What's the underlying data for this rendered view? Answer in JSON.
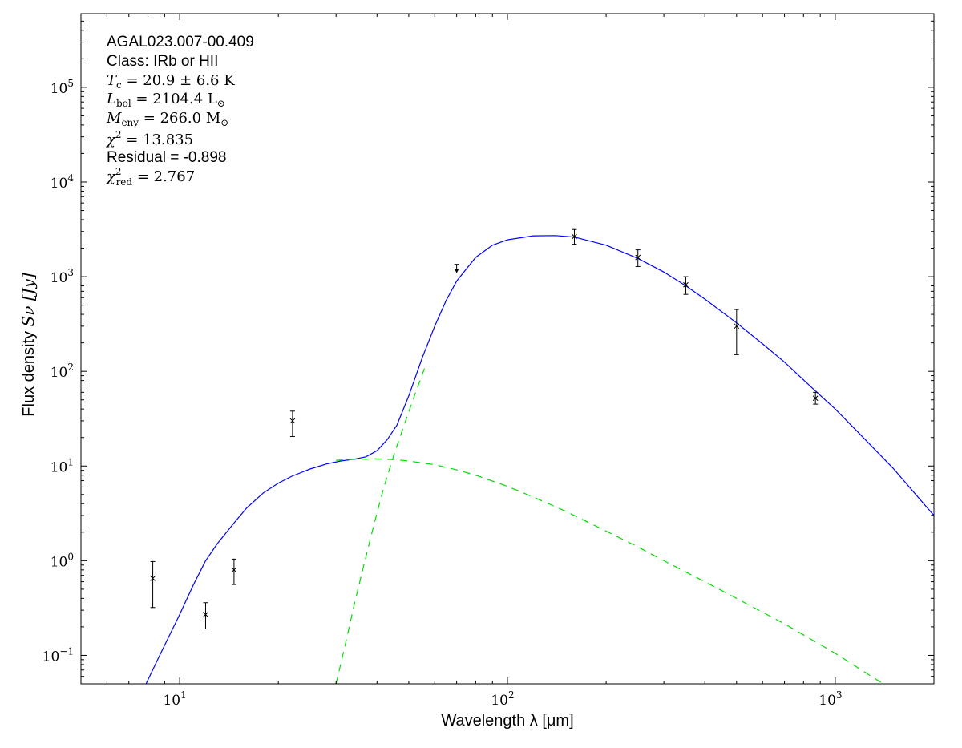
{
  "chart_data": {
    "type": "scatter",
    "xscale": "log",
    "yscale": "log",
    "xlim": [
      5,
      2000
    ],
    "ylim": [
      0.05,
      600000
    ],
    "x_ticks": [
      {
        "value": 10,
        "base": "10",
        "exp": "1"
      },
      {
        "value": 100,
        "base": "10",
        "exp": "2"
      },
      {
        "value": 1000,
        "base": "10",
        "exp": "3"
      }
    ],
    "y_ticks": [
      {
        "value": 0.1,
        "base": "10",
        "exp": "−1"
      },
      {
        "value": 1,
        "base": "10",
        "exp": "0"
      },
      {
        "value": 10,
        "base": "10",
        "exp": "1"
      },
      {
        "value": 100,
        "base": "10",
        "exp": "2"
      },
      {
        "value": 1000,
        "base": "10",
        "exp": "3"
      },
      {
        "value": 10000,
        "base": "10",
        "exp": "4"
      },
      {
        "value": 100000,
        "base": "10",
        "exp": "5"
      }
    ],
    "xlabel": "Wavelength λ [μm]",
    "ylabel_text": "Flux density",
    "ylabel_math": "Sν [Jy]",
    "annotations": {
      "source": "AGAL023.007-00.409",
      "class": "Class: IRb or HII",
      "tc_sym": "T",
      "tc_sub": "c",
      "tc_val": " = 20.9 ± 6.6 K",
      "lbol_sym": "L",
      "lbol_sub": "bol",
      "lbol_val": " = 2104.4 L",
      "lbol_unit_sub": "⊙",
      "menv_sym": "M",
      "menv_sub": "env",
      "menv_val": " = 266.0 M",
      "menv_unit_sub": "⊙",
      "chi2_sym": "χ",
      "chi2_sup": "2",
      "chi2_val": " = 13.835",
      "residual": "Residual = -0.898",
      "chi2red_sym": "χ",
      "chi2red_sup": "2",
      "chi2red_sub": "red",
      "chi2red_val": " = 2.767"
    },
    "points": [
      {
        "x": 8.28,
        "y": 0.65,
        "ylo": 0.32,
        "yhi": 0.98
      },
      {
        "x": 12.0,
        "y": 0.27,
        "ylo": 0.19,
        "yhi": 0.36
      },
      {
        "x": 14.65,
        "y": 0.8,
        "ylo": 0.56,
        "yhi": 1.04
      },
      {
        "x": 22.1,
        "y": 30,
        "ylo": 20.5,
        "yhi": 38
      },
      {
        "x": 160,
        "y": 2650,
        "ylo": 2200,
        "yhi": 3150
      },
      {
        "x": 250,
        "y": 1600,
        "ylo": 1280,
        "yhi": 1920
      },
      {
        "x": 350,
        "y": 820,
        "ylo": 650,
        "yhi": 1000
      },
      {
        "x": 500,
        "y": 300,
        "ylo": 150,
        "yhi": 450
      },
      {
        "x": 870,
        "y": 52,
        "ylo": 45,
        "yhi": 60
      }
    ],
    "upper_limits": [
      {
        "x": 70,
        "y": 1350
      }
    ],
    "series": [
      {
        "style": "solid",
        "color": "#0000ff",
        "x": [
          7.9,
          8.5,
          9.2,
          10,
          11,
          12,
          13,
          14.65,
          16,
          18,
          20,
          22,
          25,
          28,
          31,
          34,
          37,
          40,
          43,
          46,
          50,
          55,
          60,
          65,
          70,
          80,
          90,
          100,
          120,
          140,
          160,
          200,
          250,
          300,
          350,
          400,
          500,
          600,
          700,
          870,
          1000,
          1200,
          1500,
          2000
        ],
        "y": [
          0.05,
          0.085,
          0.15,
          0.27,
          0.55,
          1.0,
          1.5,
          2.5,
          3.6,
          5.2,
          6.6,
          7.8,
          9.3,
          10.5,
          11.3,
          11.8,
          12.5,
          14.5,
          19,
          27,
          55,
          140,
          300,
          560,
          900,
          1600,
          2150,
          2450,
          2700,
          2720,
          2620,
          2150,
          1560,
          1120,
          800,
          580,
          325,
          195,
          125,
          62,
          40,
          21,
          9.5,
          3.0
        ]
      },
      {
        "style": "dashed",
        "color": "#00dd00",
        "x": [
          30,
          32,
          34,
          36,
          38,
          40,
          42,
          45,
          48,
          52,
          56
        ],
        "y": [
          0.05,
          0.13,
          0.33,
          0.75,
          1.6,
          3.2,
          6.0,
          13,
          25,
          55,
          110
        ]
      },
      {
        "style": "dashed",
        "color": "#00dd00",
        "x": [
          30,
          35,
          40,
          45,
          50,
          60,
          70,
          80,
          100,
          120,
          150,
          200,
          250,
          300,
          400,
          500,
          700,
          1000,
          1400
        ],
        "y": [
          11.5,
          11.8,
          11.9,
          11.7,
          11.3,
          10.3,
          9.1,
          8.0,
          6.1,
          4.7,
          3.35,
          2.05,
          1.4,
          1.0,
          0.6,
          0.4,
          0.215,
          0.105,
          0.05
        ]
      }
    ]
  }
}
